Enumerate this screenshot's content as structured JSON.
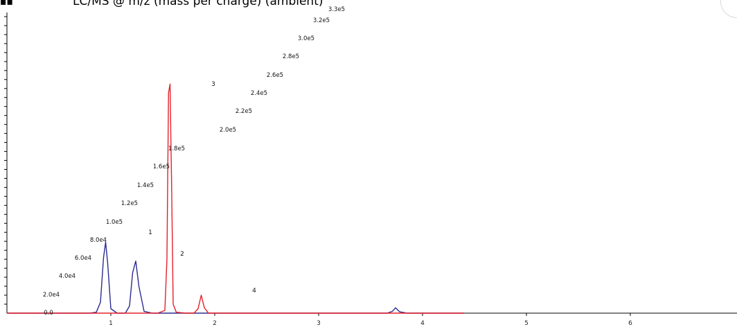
{
  "header": {
    "menu_glyph": "▪▪",
    "title": "LC/MS @ m/z (mass per charge) (ambient)"
  },
  "colors": {
    "series_blue": "#2b2b8f",
    "series_red": "#e5202a",
    "axis": "#000000"
  },
  "chart_data": {
    "type": "line",
    "title": "LC/MS @ m/z (mass per charge) (ambient)",
    "xlabel": "",
    "ylabel": "",
    "x_ticks": [
      1,
      2,
      3,
      4,
      5,
      6
    ],
    "xlim": [
      0.0,
      7.0
    ],
    "ylim": [
      0,
      330000
    ],
    "grid": false,
    "value_labels": [
      "0.0",
      "2.0e4",
      "4.0e4",
      "6.0e4",
      "8.0e4",
      "1.0e5",
      "1.2e5",
      "1.4e5",
      "1.6e5",
      "1.8e5",
      "2.0e5",
      "2.2e5",
      "2.4e5",
      "2.6e5",
      "2.8e5",
      "3.0e5",
      "3.2e5",
      "3.3e5"
    ],
    "peak_labels": [
      "1",
      "2",
      "3",
      "4"
    ],
    "series": [
      {
        "color": "#2b2b8f",
        "x": [
          0.0,
          0.8,
          0.86,
          0.9,
          0.93,
          0.95,
          0.97,
          1.0,
          1.06,
          1.14,
          1.18,
          1.21,
          1.24,
          1.27,
          1.32,
          1.4,
          2.0,
          3.0,
          3.66,
          3.71,
          3.74,
          3.78,
          3.85,
          4.4
        ],
        "y": [
          0,
          0,
          1000,
          12000,
          62000,
          79000,
          55000,
          5000,
          0,
          0,
          8000,
          45000,
          58000,
          30000,
          2000,
          0,
          0,
          0,
          0,
          2000,
          6000,
          1500,
          0,
          0
        ]
      },
      {
        "color": "#e5202a",
        "x": [
          0.0,
          1.45,
          1.52,
          1.54,
          1.555,
          1.57,
          1.585,
          1.6,
          1.63,
          1.72,
          1.8,
          1.84,
          1.87,
          1.9,
          1.94,
          2.0,
          3.0,
          4.4
        ],
        "y": [
          0,
          0,
          3000,
          60000,
          245000,
          255000,
          140000,
          10000,
          1000,
          0,
          0,
          5000,
          20000,
          6000,
          0,
          0,
          0,
          0
        ]
      }
    ]
  }
}
